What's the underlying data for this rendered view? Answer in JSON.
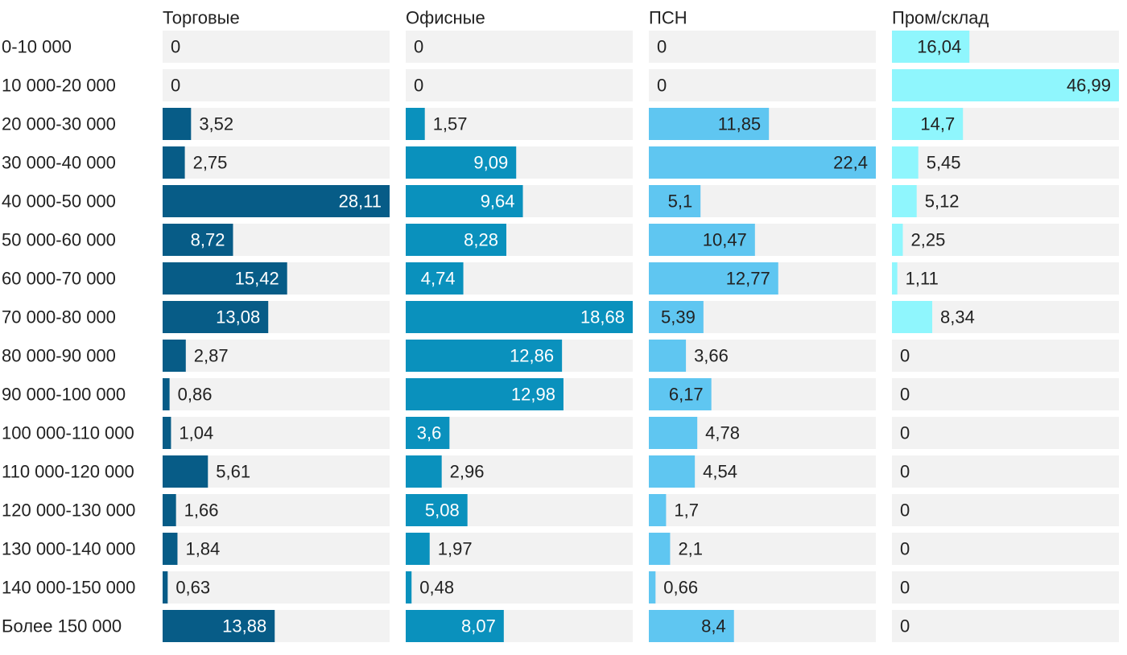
{
  "chart_data": {
    "type": "bar",
    "orientation": "horizontal",
    "layout": "small-multiples",
    "categories": [
      "0-10 000",
      "10 000-20 000",
      "20 000-30 000",
      "30 000-40 000",
      "40 000-50 000",
      "50 000-60 000",
      "60 000-70 000",
      "70 000-80 000",
      "80 000-90 000",
      "90 000-100 000",
      "100 000-110 000",
      "110 000-120 000",
      "120 000-130 000",
      "130 000-140 000",
      "140 000-150 000",
      "Более 150 000"
    ],
    "series": [
      {
        "name": "Торговые",
        "color": "#075c87",
        "values": [
          0,
          0,
          3.52,
          2.75,
          28.11,
          8.72,
          15.42,
          13.08,
          2.87,
          0.86,
          1.04,
          5.61,
          1.66,
          1.84,
          0.63,
          13.88
        ],
        "labels": [
          "0",
          "0",
          "3,52",
          "2,75",
          "28,11",
          "8,72",
          "15,42",
          "13,08",
          "2,87",
          "0,86",
          "1,04",
          "5,61",
          "1,66",
          "1,84",
          "0,63",
          "13,88"
        ]
      },
      {
        "name": "Офисные",
        "color": "#0a91bd",
        "values": [
          0,
          0,
          1.57,
          9.09,
          9.64,
          8.28,
          4.74,
          18.68,
          12.86,
          12.98,
          3.6,
          2.96,
          5.08,
          1.97,
          0.48,
          8.07
        ],
        "labels": [
          "0",
          "0",
          "1,57",
          "9,09",
          "9,64",
          "8,28",
          "4,74",
          "18,68",
          "12,86",
          "12,98",
          "3,6",
          "2,96",
          "5,08",
          "1,97",
          "0,48",
          "8,07"
        ]
      },
      {
        "name": "ПСН",
        "color": "#5fc6f1",
        "values": [
          0,
          0,
          11.85,
          22.4,
          5.1,
          10.47,
          12.77,
          5.39,
          3.66,
          6.17,
          4.78,
          4.54,
          1.7,
          2.1,
          0.66,
          8.4
        ],
        "labels": [
          "0",
          "0",
          "11,85",
          "22,4",
          "5,1",
          "10,47",
          "12,77",
          "5,39",
          "3,66",
          "6,17",
          "4,78",
          "4,54",
          "1,7",
          "2,1",
          "0,66",
          "8,4"
        ]
      },
      {
        "name": "Пром/склад",
        "color": "#8ff6fd",
        "values": [
          16.04,
          46.99,
          14.7,
          5.45,
          5.12,
          2.25,
          1.11,
          8.34,
          0,
          0,
          0,
          0,
          0,
          0,
          0,
          0
        ],
        "labels": [
          "16,04",
          "46,99",
          "14,7",
          "5,45",
          "5,12",
          "2,25",
          "1,11",
          "8,34",
          "0",
          "0",
          "0",
          "0",
          "0",
          "0",
          "0",
          "0"
        ]
      }
    ],
    "track_color": "#f2f2f2",
    "grid": false,
    "legend": "none"
  }
}
